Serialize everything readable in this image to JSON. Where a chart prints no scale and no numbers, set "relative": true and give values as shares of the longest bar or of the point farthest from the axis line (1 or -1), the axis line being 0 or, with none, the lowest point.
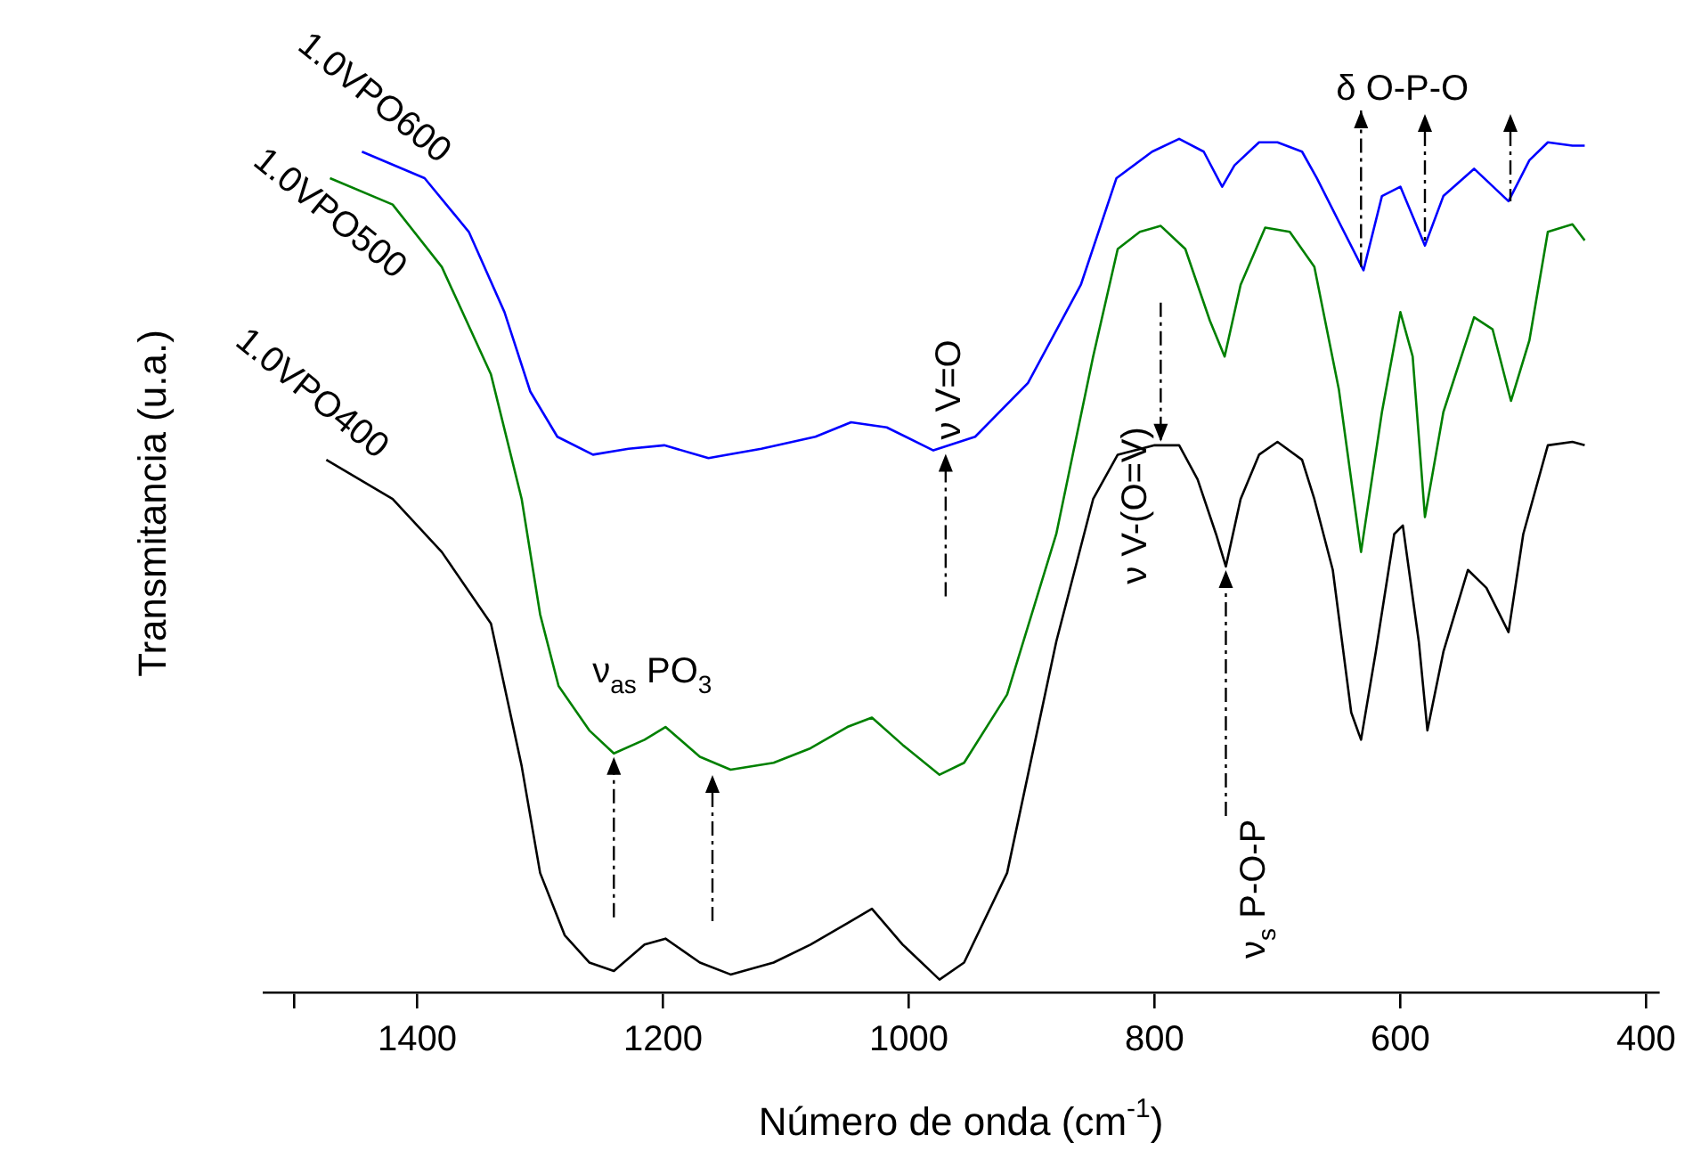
{
  "chart_data": {
    "type": "line",
    "relative": true,
    "xlabel": "Número de onda (cm$^{-1}$)",
    "ylabel": "Transmitancia (u.a.)",
    "xlim": [
      1525,
      390
    ],
    "xticks": [
      {
        "value": 1500,
        "label": null
      },
      1400,
      1200,
      1000,
      800,
      600,
      400
    ],
    "grid": false,
    "legend": false,
    "marker": "none",
    "line_style": "solid",
    "series": [
      {
        "name": "1.0VPO600",
        "color": "#0000ff",
        "x": [
          1445,
          1394,
          1358,
          1329,
          1308,
          1286,
          1257,
          1228,
          1199,
          1163,
          1120,
          1076,
          1047,
          1018,
          980,
          946,
          903,
          860,
          831,
          802,
          780,
          760,
          745,
          735,
          715,
          700,
          680,
          668,
          630,
          615,
          600,
          580,
          565,
          540,
          512,
          495,
          480,
          460,
          450
        ],
        "values": [
          0.985,
          0.954,
          0.891,
          0.797,
          0.704,
          0.651,
          0.63,
          0.637,
          0.641,
          0.626,
          0.637,
          0.651,
          0.668,
          0.662,
          0.635,
          0.651,
          0.714,
          0.829,
          0.954,
          0.985,
          1.0,
          0.985,
          0.944,
          0.969,
          0.996,
          0.996,
          0.985,
          0.954,
          0.846,
          0.933,
          0.944,
          0.875,
          0.933,
          0.965,
          0.927,
          0.975,
          0.996,
          0.992,
          0.992
        ]
      },
      {
        "name": "1.0VPO500",
        "color": "#008000",
        "x": [
          1471,
          1420,
          1380,
          1340,
          1315,
          1300,
          1285,
          1260,
          1240,
          1215,
          1198,
          1170,
          1145,
          1110,
          1080,
          1050,
          1030,
          1005,
          975,
          955,
          920,
          880,
          850,
          830,
          812,
          795,
          775,
          755,
          743,
          730,
          710,
          690,
          670,
          650,
          632,
          615,
          600,
          590,
          580,
          565,
          540,
          525,
          510,
          495,
          480,
          460,
          450
        ],
        "values": [
          0.954,
          0.923,
          0.85,
          0.724,
          0.578,
          0.443,
          0.359,
          0.307,
          0.28,
          0.296,
          0.311,
          0.276,
          0.261,
          0.269,
          0.286,
          0.311,
          0.322,
          0.29,
          0.255,
          0.269,
          0.349,
          0.537,
          0.745,
          0.871,
          0.891,
          0.898,
          0.871,
          0.787,
          0.745,
          0.829,
          0.896,
          0.891,
          0.85,
          0.706,
          0.516,
          0.68,
          0.797,
          0.745,
          0.557,
          0.68,
          0.791,
          0.777,
          0.693,
          0.764,
          0.891,
          0.9,
          0.881
        ]
      },
      {
        "name": "1.0VPO400",
        "color": "#000000",
        "x": [
          1474,
          1420,
          1380,
          1340,
          1315,
          1300,
          1280,
          1260,
          1240,
          1215,
          1198,
          1170,
          1145,
          1110,
          1080,
          1050,
          1030,
          1005,
          975,
          955,
          920,
          880,
          850,
          830,
          800,
          780,
          765,
          750,
          742,
          730,
          715,
          700,
          680,
          670,
          655,
          640,
          632,
          620,
          605,
          598,
          585,
          578,
          565,
          545,
          530,
          512,
          500,
          480,
          460,
          450
        ],
        "values": [
          0.624,
          0.578,
          0.516,
          0.432,
          0.265,
          0.14,
          0.067,
          0.035,
          0.025,
          0.056,
          0.063,
          0.035,
          0.021,
          0.035,
          0.056,
          0.081,
          0.098,
          0.056,
          0.015,
          0.035,
          0.14,
          0.411,
          0.578,
          0.63,
          0.641,
          0.641,
          0.601,
          0.537,
          0.499,
          0.578,
          0.63,
          0.645,
          0.624,
          0.578,
          0.495,
          0.328,
          0.296,
          0.399,
          0.537,
          0.547,
          0.411,
          0.307,
          0.399,
          0.495,
          0.474,
          0.422,
          0.537,
          0.641,
          0.645,
          0.641
        ]
      }
    ],
    "annotations": [
      {
        "text": "ν V=O",
        "x": 970,
        "y": 0.635
      },
      {
        "text": "ν V-(O=V)",
        "x": 795,
        "y": 0.641
      },
      {
        "text": "ν$_{s}$ P-O-P",
        "x": 742,
        "y": 0.499
      },
      {
        "text": "ν$_{as}$ PO$_{3}$",
        "x": 1240,
        "y": 0.28
      },
      {
        "text": "δ O-P-O",
        "x": 632,
        "y": 0.846
      }
    ]
  }
}
